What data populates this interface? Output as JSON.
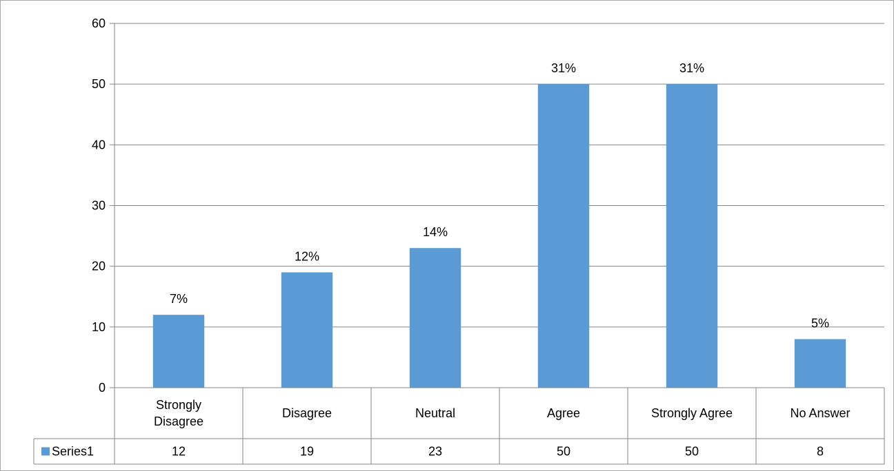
{
  "chart_data": {
    "type": "bar",
    "categories": [
      "Strongly Disagree",
      "Disagree",
      "Neutral",
      "Agree",
      "Strongly Agree",
      "No Answer"
    ],
    "category_lines": [
      [
        "Strongly",
        "Disagree"
      ],
      [
        "Disagree"
      ],
      [
        "Neutral"
      ],
      [
        "Agree"
      ],
      [
        "Strongly Agree"
      ],
      [
        "No Answer"
      ]
    ],
    "series": [
      {
        "name": "Series1",
        "values": [
          12,
          19,
          23,
          50,
          50,
          8
        ],
        "value_texts": [
          "12",
          "19",
          "23",
          "50",
          "50",
          "8"
        ],
        "data_labels": [
          "7%",
          "12%",
          "14%",
          "31%",
          "31%",
          "5%"
        ],
        "color": "#5b9bd5"
      }
    ],
    "ylim": [
      0,
      60
    ],
    "yticks": [
      0,
      10,
      20,
      30,
      40,
      50,
      60
    ],
    "ytick_labels": [
      "0",
      "10",
      "20",
      "30",
      "40",
      "50",
      "60"
    ],
    "grid": true,
    "legend": "data-table-left",
    "data_table": true,
    "title": "",
    "xlabel": "",
    "ylabel": ""
  }
}
